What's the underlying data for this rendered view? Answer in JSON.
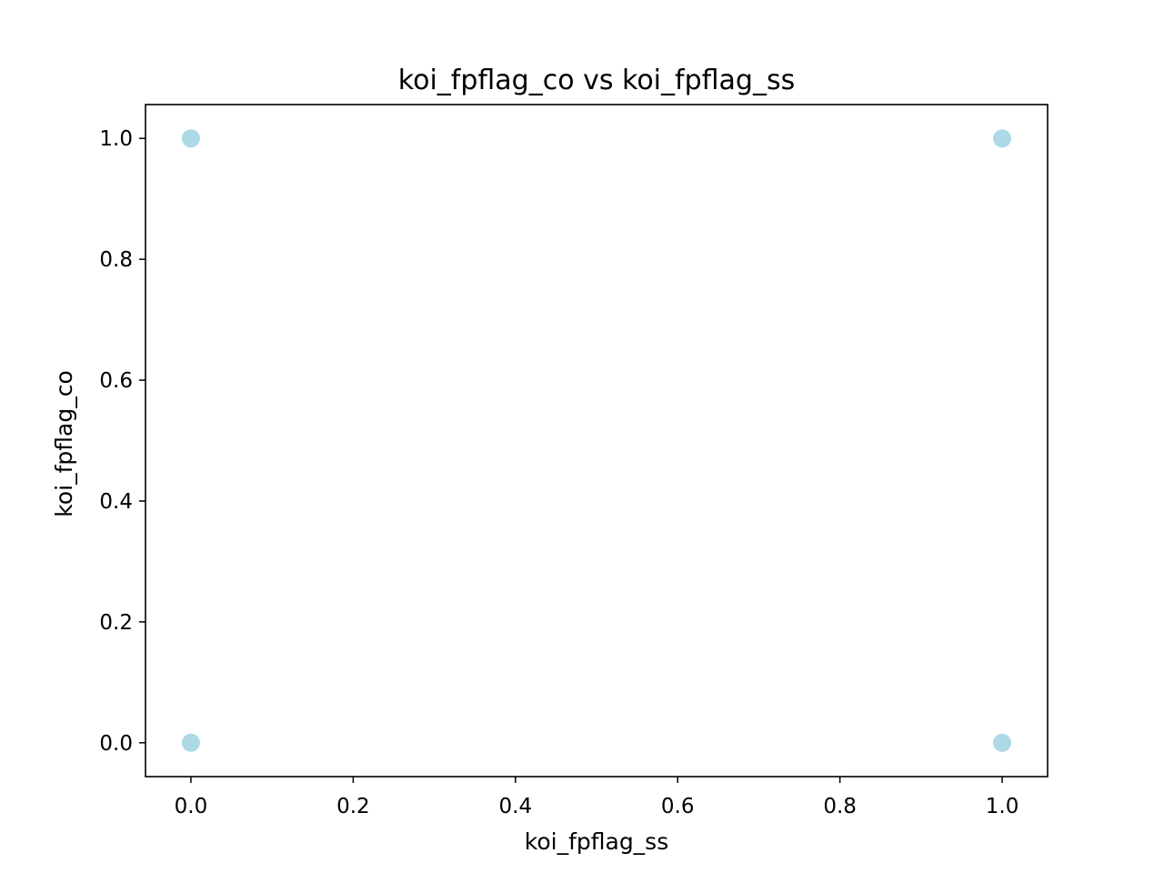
{
  "chart_data": {
    "type": "scatter",
    "title": "koi_fpflag_co vs koi_fpflag_ss",
    "xlabel": "koi_fpflag_ss",
    "ylabel": "koi_fpflag_co",
    "xlim": [
      -0.056,
      1.056
    ],
    "ylim": [
      -0.056,
      1.056
    ],
    "xticks": [
      "0.0",
      "0.2",
      "0.4",
      "0.6",
      "0.8",
      "1.0"
    ],
    "yticks": [
      "0.0",
      "0.2",
      "0.4",
      "0.6",
      "0.8",
      "1.0"
    ],
    "grid": false,
    "point_color": "#add8e6",
    "points": [
      {
        "x": 0.0,
        "y": 1.0
      },
      {
        "x": 1.0,
        "y": 1.0
      },
      {
        "x": 0.0,
        "y": 0.0
      },
      {
        "x": 1.0,
        "y": 0.0
      }
    ]
  }
}
